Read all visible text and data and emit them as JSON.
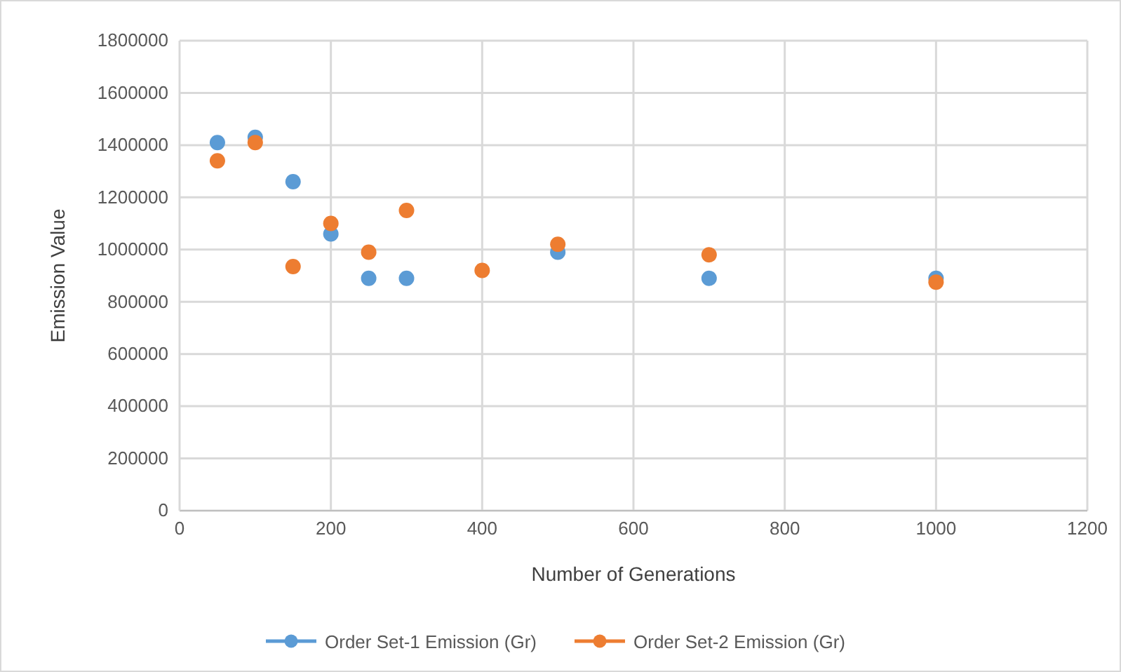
{
  "chart_data": {
    "type": "scatter",
    "xlabel": "Number of Generations",
    "ylabel": "Emission Value",
    "x": [
      50,
      100,
      150,
      200,
      250,
      300,
      400,
      500,
      700,
      1000
    ],
    "series": [
      {
        "name": "Order Set-1 Emission (Gr)",
        "color": "#5b9bd5",
        "values": [
          1410000,
          1430000,
          1260000,
          1060000,
          890000,
          890000,
          null,
          990000,
          890000,
          890000
        ]
      },
      {
        "name": "Order Set-2 Emission (Gr)",
        "color": "#ed7d31",
        "values": [
          1340000,
          1410000,
          935000,
          1100000,
          990000,
          1150000,
          920000,
          1020000,
          980000,
          875000
        ]
      }
    ],
    "xlim": [
      0,
      1200
    ],
    "xticks": [
      0,
      200,
      400,
      600,
      800,
      1000,
      1200
    ],
    "ylim": [
      0,
      1800000
    ],
    "yticks": [
      0,
      200000,
      400000,
      600000,
      800000,
      1000000,
      1200000,
      1400000,
      1600000,
      1800000
    ],
    "grid": true,
    "legend": "bottom",
    "marker": "circle"
  }
}
